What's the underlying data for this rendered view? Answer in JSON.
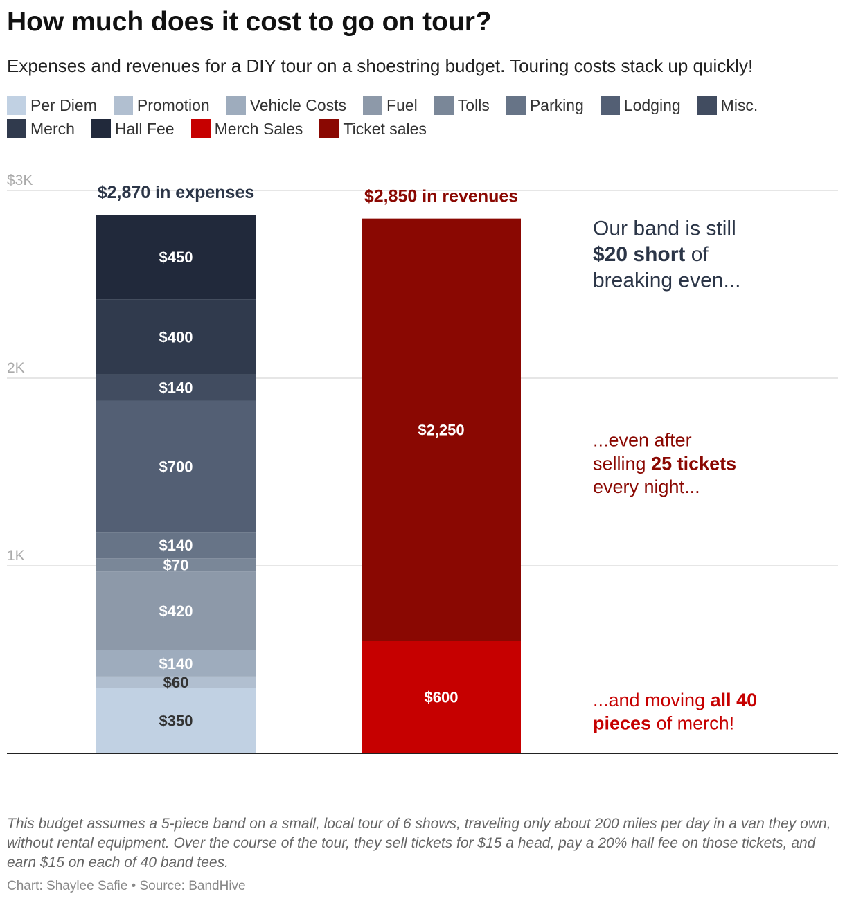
{
  "title": "How much does it cost to go on tour?",
  "subtitle": "Expenses and revenues for a DIY tour on a shoestring budget. Touring costs stack up quickly!",
  "legend": [
    {
      "label": "Per Diem",
      "color": "#c1d1e3"
    },
    {
      "label": "Promotion",
      "color": "#b1bfd0"
    },
    {
      "label": "Vehicle Costs",
      "color": "#9eacbd"
    },
    {
      "label": "Fuel",
      "color": "#8d99a9"
    },
    {
      "label": "Tolls",
      "color": "#7a8798"
    },
    {
      "label": "Parking",
      "color": "#677487"
    },
    {
      "label": "Lodging",
      "color": "#535f74"
    },
    {
      "label": "Misc.",
      "color": "#414c60"
    },
    {
      "label": "Merch",
      "color": "#303a4d"
    },
    {
      "label": "Hall Fee",
      "color": "#21293b"
    },
    {
      "label": "Merch Sales",
      "color": "#c60000"
    },
    {
      "label": "Ticket sales",
      "color": "#8a0802"
    }
  ],
  "chart_data": {
    "type": "bar",
    "stacked": true,
    "categories": [
      "Expenses",
      "Revenues"
    ],
    "y_ticks": [
      "$3K",
      "2K",
      "1K"
    ],
    "ylim": [
      0,
      3000
    ],
    "series": [
      {
        "name": "Per Diem",
        "values": [
          350,
          0
        ],
        "label": "$350",
        "color": "#c1d1e3",
        "text_color": "#333333"
      },
      {
        "name": "Promotion",
        "values": [
          60,
          0
        ],
        "label": "$60",
        "color": "#b1bfd0",
        "text_color": "#333333"
      },
      {
        "name": "Vehicle Costs",
        "values": [
          140,
          0
        ],
        "label": "$140",
        "color": "#9eacbd",
        "text_color": "#ffffff"
      },
      {
        "name": "Fuel",
        "values": [
          420,
          0
        ],
        "label": "$420",
        "color": "#8d99a9",
        "text_color": "#ffffff"
      },
      {
        "name": "Tolls",
        "values": [
          70,
          0
        ],
        "label": "$70",
        "color": "#7a8798",
        "text_color": "#ffffff"
      },
      {
        "name": "Parking",
        "values": [
          140,
          0
        ],
        "label": "$140",
        "color": "#677487",
        "text_color": "#ffffff"
      },
      {
        "name": "Lodging",
        "values": [
          700,
          0
        ],
        "label": "$700",
        "color": "#535f74",
        "text_color": "#ffffff"
      },
      {
        "name": "Misc.",
        "values": [
          140,
          0
        ],
        "label": "$140",
        "color": "#414c60",
        "text_color": "#ffffff"
      },
      {
        "name": "Merch",
        "values": [
          400,
          0
        ],
        "label": "$400",
        "color": "#303a4d",
        "text_color": "#ffffff"
      },
      {
        "name": "Hall Fee",
        "values": [
          450,
          0
        ],
        "label": "$450",
        "color": "#21293b",
        "text_color": "#ffffff"
      },
      {
        "name": "Merch Sales",
        "values": [
          0,
          600
        ],
        "label": "$600",
        "color": "#c60000",
        "text_color": "#ffffff"
      },
      {
        "name": "Ticket sales",
        "values": [
          0,
          2250
        ],
        "label": "$2,250",
        "color": "#8a0802",
        "text_color": "#ffffff"
      }
    ],
    "totals": [
      {
        "text": "$2,870 in expenses",
        "value": 2870,
        "color": "#2b3547"
      },
      {
        "text": "$2,850 in revenues",
        "value": 2850,
        "color": "#8a0802"
      }
    ],
    "annotations": [
      {
        "lines": [
          [
            {
              "t": "Our band is still",
              "b": false
            }
          ],
          [
            {
              "t": "$20 short",
              "b": true
            },
            {
              "t": " of",
              "b": false
            }
          ],
          [
            {
              "t": "breaking even...",
              "b": false
            }
          ]
        ],
        "color": "#2b3547",
        "anchor_value": 2850,
        "size": 30
      },
      {
        "lines": [
          [
            {
              "t": "...even after",
              "b": false
            }
          ],
          [
            {
              "t": "selling ",
              "b": false
            },
            {
              "t": "25 tickets",
              "b": true
            }
          ],
          [
            {
              "t": "every night...",
              "b": false
            }
          ]
        ],
        "color": "#8a0802",
        "anchor_value": 1725,
        "size": 27
      },
      {
        "lines": [
          [
            {
              "t": "...and moving ",
              "b": false
            },
            {
              "t": "all 40",
              "b": true
            }
          ],
          [
            {
              "t": "pieces",
              "b": true
            },
            {
              "t": " of merch!",
              "b": false
            }
          ]
        ],
        "color": "#c60000",
        "anchor_value": 340,
        "size": 27
      }
    ]
  },
  "footnote": "This budget assumes a 5-piece band on a small, local tour of 6 shows, traveling only about 200 miles per day in a van they own, without rental equipment. Over the course of the tour, they sell tickets for $15 a head, pay a 20% hall fee on those tickets, and earn $15 on each of 40 band tees.",
  "credit": "Chart: Shaylee Safie • Source: BandHive"
}
